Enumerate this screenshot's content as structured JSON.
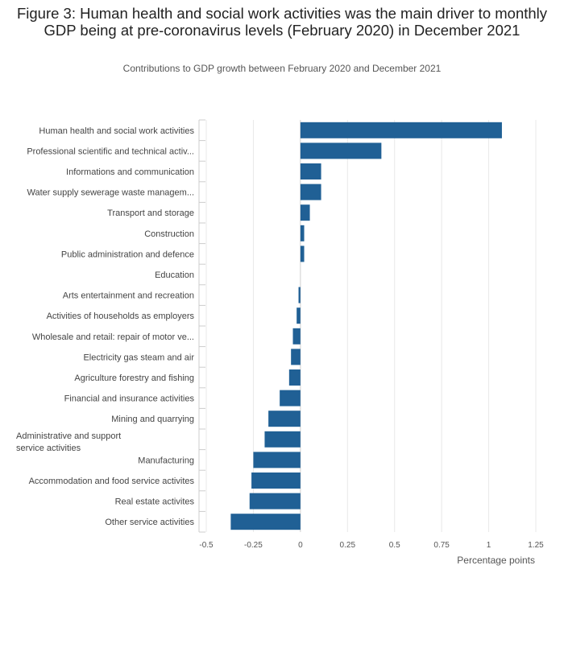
{
  "chart_data": {
    "type": "bar",
    "orientation": "horizontal",
    "title": "Figure 3: Human health and social work activities was the main driver to monthly GDP being at pre-coronavirus levels (February 2020) in December 2021",
    "subtitle": "Contributions to GDP growth between February 2020 and December 2021",
    "xlabel": "Percentage points",
    "ylabel": "",
    "xlim": [
      -0.5,
      1.25
    ],
    "xticks": [
      -0.5,
      -0.25,
      0,
      0.25,
      0.5,
      0.75,
      1,
      1.25
    ],
    "xtick_labels": [
      "-0.5",
      "-0.25",
      "0",
      "0.25",
      "0.5",
      "0.75",
      "1",
      "1.25"
    ],
    "grid": true,
    "bar_color": "#206095",
    "categories": [
      "Human health and social work activities",
      "Professional scientific and technical activ...",
      "Informations and communication",
      "Water supply sewerage waste managem...",
      "Transport and storage",
      "Construction",
      "Public administration and defence",
      "Education",
      "Arts entertainment and recreation",
      "Activities of households as employers",
      "Wholesale and retail: repair of motor ve...",
      "Electricity gas steam and air",
      "Agriculture forestry and fishing",
      "Financial and insurance activities",
      "Mining and quarrying",
      "Administrative and support service activities",
      "Manufacturing",
      "Accommodation and food service activites",
      "Real estate activites",
      "Other service activities"
    ],
    "values": [
      1.07,
      0.43,
      0.11,
      0.11,
      0.05,
      0.02,
      0.02,
      0.0,
      -0.01,
      -0.02,
      -0.04,
      -0.05,
      -0.06,
      -0.11,
      -0.17,
      -0.19,
      -0.25,
      -0.26,
      -0.27,
      -0.37
    ]
  }
}
